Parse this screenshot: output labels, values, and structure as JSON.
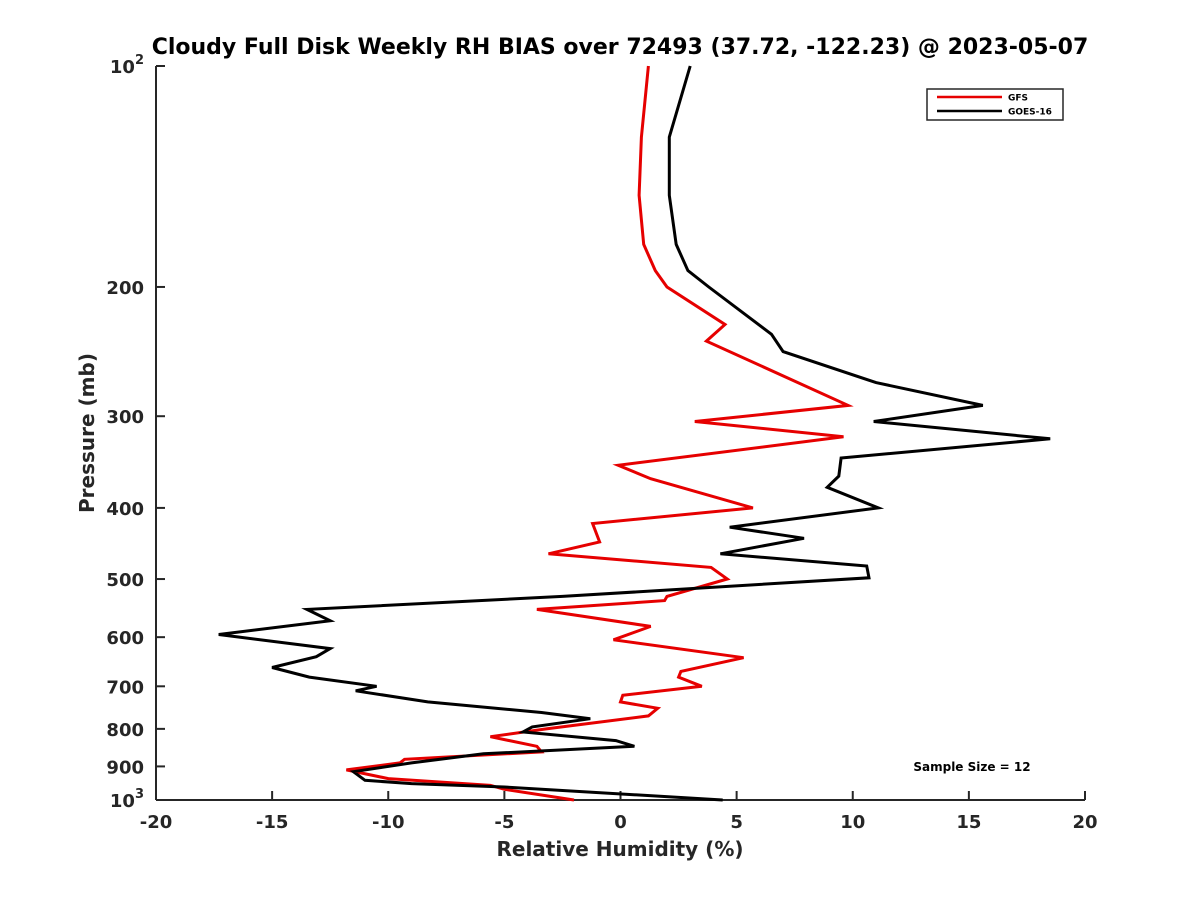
{
  "chart_data": {
    "type": "line",
    "title": "Cloudy Full Disk Weekly RH BIAS over 72493 (37.72, -122.23) @ 2023-05-07",
    "xlabel": "Relative Humidity (%)",
    "ylabel": "Pressure (mb)",
    "xlim": [
      -20,
      20
    ],
    "ylim": [
      100,
      1000
    ],
    "y_scale": "log",
    "y_reversed": true,
    "x_ticks": [
      -20,
      -15,
      -10,
      -5,
      0,
      5,
      10,
      15,
      20
    ],
    "x_tick_labels": [
      "-20",
      "-15",
      "-10",
      "-5",
      "0",
      "5",
      "10",
      "15",
      "20"
    ],
    "y_ticks": [
      100,
      200,
      300,
      400,
      500,
      600,
      700,
      800,
      900,
      1000
    ],
    "y_tick_labels": [
      {
        "text": "10",
        "sup": "2"
      },
      {
        "text": "200",
        "sup": ""
      },
      {
        "text": "300",
        "sup": ""
      },
      {
        "text": "400",
        "sup": ""
      },
      {
        "text": "500",
        "sup": ""
      },
      {
        "text": "600",
        "sup": ""
      },
      {
        "text": "700",
        "sup": ""
      },
      {
        "text": "800",
        "sup": ""
      },
      {
        "text": "900",
        "sup": ""
      },
      {
        "text": "10",
        "sup": "3"
      }
    ],
    "legend_position": "top-right",
    "annotation": "Sample Size = 12",
    "grid": false,
    "series": [
      {
        "name": "GFS",
        "color": "#e60000",
        "points": [
          [
            1.2,
            100
          ],
          [
            0.9,
            125
          ],
          [
            0.8,
            150
          ],
          [
            1.0,
            175
          ],
          [
            1.5,
            190
          ],
          [
            2.0,
            200
          ],
          [
            4.5,
            225
          ],
          [
            3.7,
            237
          ],
          [
            9.8,
            290
          ],
          [
            3.2,
            305
          ],
          [
            9.6,
            320
          ],
          [
            -0.1,
            350
          ],
          [
            1.3,
            365
          ],
          [
            5.7,
            400
          ],
          [
            -1.2,
            420
          ],
          [
            -0.9,
            445
          ],
          [
            -3.1,
            462
          ],
          [
            3.9,
            482
          ],
          [
            4.6,
            500
          ],
          [
            2.0,
            528
          ],
          [
            1.9,
            535
          ],
          [
            -3.6,
            550
          ],
          [
            1.3,
            580
          ],
          [
            -0.3,
            605
          ],
          [
            5.3,
            640
          ],
          [
            2.6,
            668
          ],
          [
            2.5,
            680
          ],
          [
            3.5,
            700
          ],
          [
            0.1,
            720
          ],
          [
            0.0,
            735
          ],
          [
            1.6,
            750
          ],
          [
            1.2,
            768
          ],
          [
            -3.2,
            800
          ],
          [
            -5.6,
            820
          ],
          [
            -3.6,
            845
          ],
          [
            -3.4,
            860
          ],
          [
            -9.3,
            880
          ],
          [
            -9.5,
            890
          ],
          [
            -11.8,
            910
          ],
          [
            -10.0,
            935
          ],
          [
            -5.6,
            955
          ],
          [
            -5.0,
            967
          ],
          [
            -2.0,
            1000
          ]
        ]
      },
      {
        "name": "GOES-16",
        "color": "#000000",
        "points": [
          [
            3.0,
            100
          ],
          [
            2.1,
            125
          ],
          [
            2.1,
            150
          ],
          [
            2.4,
            175
          ],
          [
            2.9,
            190
          ],
          [
            3.8,
            200
          ],
          [
            6.5,
            232
          ],
          [
            7.0,
            245
          ],
          [
            11.0,
            270
          ],
          [
            15.6,
            290
          ],
          [
            10.9,
            305
          ],
          [
            18.5,
            322
          ],
          [
            9.5,
            342
          ],
          [
            9.4,
            362
          ],
          [
            8.9,
            375
          ],
          [
            11.1,
            400
          ],
          [
            4.7,
            425
          ],
          [
            7.9,
            440
          ],
          [
            4.3,
            462
          ],
          [
            10.6,
            480
          ],
          [
            10.7,
            498
          ],
          [
            -2.5,
            528
          ],
          [
            -13.5,
            550
          ],
          [
            -12.5,
            570
          ],
          [
            -17.3,
            595
          ],
          [
            -12.5,
            622
          ],
          [
            -13.1,
            638
          ],
          [
            -15.0,
            660
          ],
          [
            -13.4,
            680
          ],
          [
            -10.5,
            700
          ],
          [
            -11.4,
            710
          ],
          [
            -8.3,
            735
          ],
          [
            -3.4,
            760
          ],
          [
            -1.3,
            775
          ],
          [
            -3.8,
            795
          ],
          [
            -4.2,
            808
          ],
          [
            -0.2,
            830
          ],
          [
            0.6,
            845
          ],
          [
            -5.9,
            865
          ],
          [
            -9.0,
            890
          ],
          [
            -11.5,
            915
          ],
          [
            -11.0,
            940
          ],
          [
            -9.0,
            950
          ],
          [
            -5.0,
            960
          ],
          [
            4.4,
            1000
          ]
        ]
      }
    ]
  }
}
